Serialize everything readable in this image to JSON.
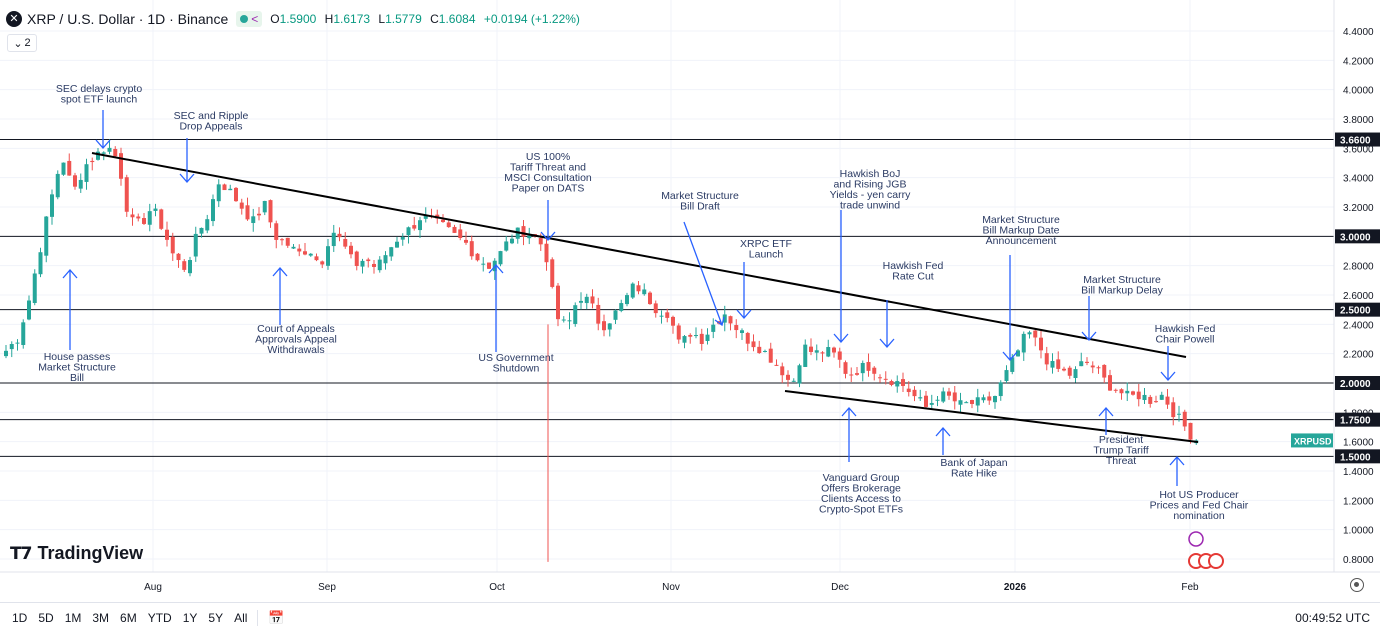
{
  "header": {
    "symbol_icon": "close-x-icon",
    "title": "XRP / U.S. Dollar · 1D · Binance",
    "open_label": "O",
    "open": "1.5900",
    "high_label": "H",
    "high": "1.6173",
    "low_label": "L",
    "low": "1.5779",
    "close_label": "C",
    "close": "1.6084",
    "change": "+0.0194 (+1.22%)"
  },
  "indicator_toggle": "2",
  "logo_text": "TradingView",
  "toolbar": {
    "ranges": [
      "1D",
      "5D",
      "1M",
      "3M",
      "6M",
      "YTD",
      "1Y",
      "5Y",
      "All"
    ],
    "clock": "00:49:52 UTC"
  },
  "colors": {
    "up": "#26a69a",
    "down": "#ef5350",
    "annotation": "#2962ff",
    "line": "#131722"
  },
  "chart_data": {
    "type": "candlestick",
    "symbol_label": "XRPUSD",
    "x_ticks": [
      {
        "label": "Aug",
        "bold": false
      },
      {
        "label": "Sep",
        "bold": false
      },
      {
        "label": "Oct",
        "bold": false
      },
      {
        "label": "Nov",
        "bold": false
      },
      {
        "label": "Dec",
        "bold": false
      },
      {
        "label": "2026",
        "bold": true
      },
      {
        "label": "Feb",
        "bold": false
      }
    ],
    "y_ticks": [
      "4.4000",
      "4.2000",
      "4.0000",
      "3.8000",
      "3.6000",
      "3.4000",
      "3.2000",
      "3.0000",
      "2.8000",
      "2.6000",
      "2.4000",
      "2.2000",
      "2.0000",
      "1.8000",
      "1.6000",
      "1.4000",
      "1.2000",
      "1.0000",
      "0.8000"
    ],
    "ylim": [
      0.7,
      4.6
    ],
    "levels": [
      "3.6600",
      "3.0000",
      "2.5000",
      "2.0000",
      "1.7500",
      "1.5000"
    ],
    "last_price": "1.6084",
    "trendline_upper": [
      [
        0,
        3.56
      ],
      [
        0,
        2.17
      ]
    ],
    "trendline_lower": [
      [
        0,
        1.93
      ],
      [
        0,
        1.6
      ]
    ],
    "anchors_close": [
      2.22,
      2.3,
      2.55,
      2.9,
      3.25,
      3.55,
      3.3,
      3.48,
      3.55,
      3.62,
      3.52,
      3.1,
      3.08,
      3.2,
      3.05,
      2.85,
      2.78,
      3.0,
      3.15,
      3.38,
      3.3,
      3.2,
      3.1,
      3.22,
      3.0,
      2.95,
      2.88,
      2.92,
      2.8,
      3.05,
      2.95,
      2.8,
      2.85,
      2.78,
      2.9,
      3.0,
      3.05,
      3.14,
      3.1,
      3.06,
      3.0,
      2.95,
      2.85,
      2.8,
      2.88,
      3.0,
      3.04,
      3.0,
      2.92,
      2.45,
      2.38,
      2.6,
      2.55,
      2.38,
      2.45,
      2.55,
      2.67,
      2.6,
      2.5,
      2.48,
      2.25,
      2.35,
      2.3,
      2.4,
      2.48,
      2.38,
      2.3,
      2.25,
      2.18,
      2.1,
      1.98,
      2.25,
      2.2,
      2.22,
      2.18,
      2.05,
      2.1,
      2.12,
      2.05,
      2.02,
      1.98,
      1.9,
      1.83,
      1.92,
      1.9,
      1.85,
      1.86,
      1.87,
      1.9,
      2.05,
      2.2,
      2.35,
      2.25,
      2.12,
      2.08,
      2.05,
      2.15,
      2.1,
      2.0,
      1.95,
      1.9,
      1.92,
      1.88,
      1.92,
      1.8,
      1.7,
      1.6
    ],
    "annotations": [
      {
        "text": "SEC delays crypto\nspot ETF launch",
        "dir": "down"
      },
      {
        "text": "SEC and Ripple\nDrop Appeals",
        "dir": "down"
      },
      {
        "text": "US 100%\nTariff Threat and\nMSCI Consultation\nPaper on DATS",
        "dir": "down"
      },
      {
        "text": "Market Structure\nBill Draft",
        "dir": "down"
      },
      {
        "text": "XRPC ETF\nLaunch",
        "dir": "down"
      },
      {
        "text": "Hawkish BoJ\nand Rising JGB\nYields - yen carry\ntrade unwind",
        "dir": "down"
      },
      {
        "text": "Hawkish Fed\nRate Cut",
        "dir": "down"
      },
      {
        "text": "Market Structure\nBill Markup Date\nAnnouncement",
        "dir": "down"
      },
      {
        "text": "Market Structure\nBill Markup Delay",
        "dir": "down"
      },
      {
        "text": "Hawkish Fed\nChair Powell",
        "dir": "down"
      },
      {
        "text": "House passes\nMarket Structure\nBill",
        "dir": "up"
      },
      {
        "text": "Court of Appeals\nApprovals Appeal\nWithdrawals",
        "dir": "up"
      },
      {
        "text": "US Government\nShutdown",
        "dir": "up"
      },
      {
        "text": "Vanguard Group\nOffers Brokerage\nClients Access to\nCrypto-Spot ETFs",
        "dir": "up"
      },
      {
        "text": "Bank of Japan\nRate Hike",
        "dir": "up"
      },
      {
        "text": "President\nTrump Tariff\nThreat",
        "dir": "up"
      },
      {
        "text": "Hot US Producer\nPrices and Fed Chair\nnomination",
        "dir": "up"
      }
    ]
  }
}
